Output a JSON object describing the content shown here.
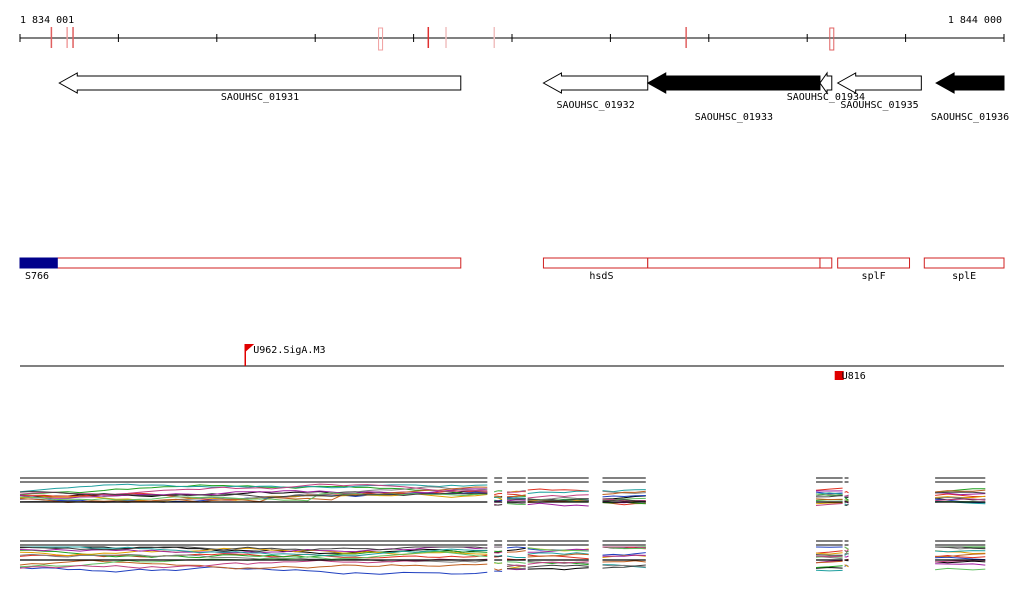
{
  "ruler": {
    "start_label": "1 834 001",
    "end_label": "1 844 000",
    "start": 1834001,
    "end": 1844000,
    "marks": [
      {
        "pos": 1834320,
        "color": "#e06060",
        "boxed": false
      },
      {
        "pos": 1834480,
        "color": "#f0a0a0",
        "boxed": false
      },
      {
        "pos": 1834540,
        "color": "#e06060",
        "boxed": false
      },
      {
        "pos": 1837665,
        "color": "#f0a0a0",
        "boxed": true
      },
      {
        "pos": 1838150,
        "color": "#e03030",
        "boxed": false
      },
      {
        "pos": 1838330,
        "color": "#f0c0c0",
        "boxed": false
      },
      {
        "pos": 1838820,
        "color": "#f0c0c0",
        "boxed": false
      },
      {
        "pos": 1840770,
        "color": "#e06060",
        "boxed": false
      },
      {
        "pos": 1842250,
        "color": "#e06060",
        "boxed": true
      }
    ]
  },
  "genes": [
    {
      "name": "SAOUHSC_01931",
      "start": 1834400,
      "end": 1838480,
      "strand": "-",
      "filled": false
    },
    {
      "name": "SAOUHSC_01932",
      "start": 1839320,
      "end": 1840380,
      "strand": "-",
      "filled": false
    },
    {
      "name": "SAOUHSC_01933",
      "start": 1840380,
      "end": 1842130,
      "strand": "-",
      "filled": true
    },
    {
      "name": "SAOUHSC_01934",
      "start": 1842130,
      "end": 1842250,
      "strand": "-",
      "filled": false
    },
    {
      "name": "SAOUHSC_01935",
      "start": 1842310,
      "end": 1843160,
      "strand": "-",
      "filled": false
    },
    {
      "name": "SAOUHSC_01936",
      "start": 1843310,
      "end": 1844000,
      "strand": "-",
      "filled": true
    }
  ],
  "operons": [
    {
      "name": "S766",
      "segments": [
        {
          "start": 1834001,
          "end": 1838480
        }
      ],
      "highlight_end": 1834380
    },
    {
      "name": "hsdS",
      "segments": [
        {
          "start": 1839320,
          "end": 1840380
        },
        {
          "start": 1840380,
          "end": 1842130
        },
        {
          "start": 1842130,
          "end": 1842250
        }
      ]
    },
    {
      "name": "splF",
      "segments": [
        {
          "start": 1842310,
          "end": 1843040
        }
      ]
    },
    {
      "name": "splE",
      "segments": [
        {
          "start": 1843190,
          "end": 1844000
        }
      ]
    }
  ],
  "features": [
    {
      "name": "U962.SigA.M3",
      "pos": 1836290,
      "type": "flag"
    },
    {
      "name": "U816",
      "pos": 1842300,
      "type": "box"
    }
  ],
  "expression_tracks": {
    "palette": [
      "#000000",
      "#e03020",
      "#20a020",
      "#2040c0",
      "#e0a000",
      "#a020a0",
      "#20a0a0",
      "#808080",
      "#c06020",
      "#60c060",
      "#c04080",
      "#404040"
    ],
    "regions": [
      {
        "start": 1834001,
        "end": 1838750
      },
      {
        "start": 1838820,
        "end": 1838900
      },
      {
        "start": 1838950,
        "end": 1839140
      },
      {
        "start": 1839160,
        "end": 1839780
      },
      {
        "start": 1839920,
        "end": 1840360
      },
      {
        "start": 1842090,
        "end": 1842360
      },
      {
        "start": 1842380,
        "end": 1842420
      },
      {
        "start": 1843300,
        "end": 1843810
      }
    ]
  }
}
